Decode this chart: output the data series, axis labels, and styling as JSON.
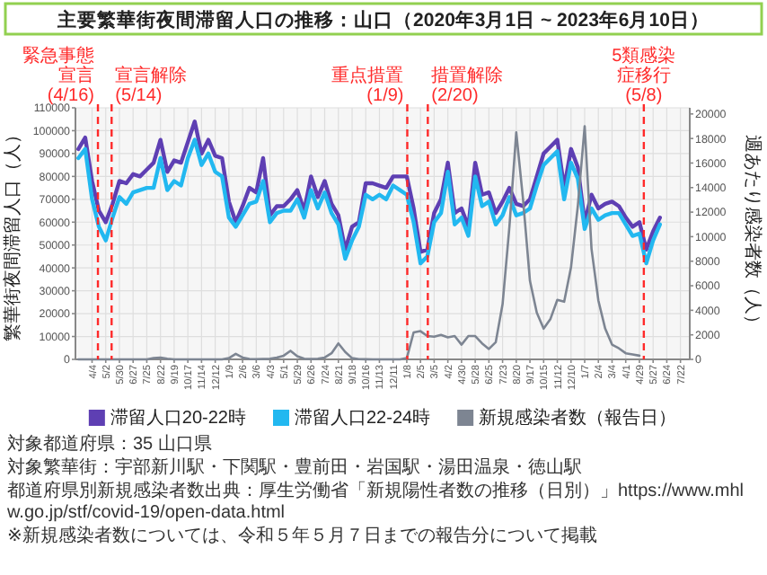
{
  "chart_data": {
    "type": "line",
    "title": "主要繁華街夜間滞留人口の推移：山口（2020年3月1日 ~ 2023年6月10日）",
    "ylabel": "繁華街夜間滞留人口（人）",
    "y2label": "週あたり感染者数（人）",
    "x": [
      "2020-03-07",
      "2020-03-21",
      "2020-04-04",
      "2020-04-18",
      "2020-05-02",
      "2020-05-16",
      "2020-05-30",
      "2020-06-13",
      "2020-06-27",
      "2020-07-11",
      "2020-07-25",
      "2020-08-08",
      "2020-08-22",
      "2020-09-05",
      "2020-09-19",
      "2020-10-03",
      "2020-10-17",
      "2020-10-31",
      "2020-11-14",
      "2020-11-28",
      "2020-12-12",
      "2020-12-26",
      "2021-01-09",
      "2021-01-23",
      "2021-02-06",
      "2021-02-20",
      "2021-03-06",
      "2021-03-20",
      "2021-04-03",
      "2021-04-17",
      "2021-05-01",
      "2021-05-15",
      "2021-05-29",
      "2021-06-12",
      "2021-06-26",
      "2021-07-10",
      "2021-07-24",
      "2021-08-07",
      "2021-08-21",
      "2021-09-04",
      "2021-09-18",
      "2021-10-02",
      "2021-10-16",
      "2021-10-30",
      "2021-11-13",
      "2021-11-27",
      "2021-12-11",
      "2021-12-25",
      "2022-01-08",
      "2022-01-22",
      "2022-02-05",
      "2022-02-19",
      "2022-03-05",
      "2022-03-19",
      "2022-04-02",
      "2022-04-16",
      "2022-04-30",
      "2022-05-14",
      "2022-05-28",
      "2022-06-11",
      "2022-06-25",
      "2022-07-09",
      "2022-07-23",
      "2022-08-06",
      "2022-08-20",
      "2022-09-03",
      "2022-09-17",
      "2022-10-01",
      "2022-10-15",
      "2022-10-29",
      "2022-11-12",
      "2022-11-26",
      "2022-12-10",
      "2022-12-24",
      "2023-01-07",
      "2023-01-21",
      "2023-02-04",
      "2023-02-18",
      "2023-03-04",
      "2023-03-18",
      "2023-04-01",
      "2023-04-15",
      "2023-04-29",
      "2023-05-13",
      "2023-05-27",
      "2023-06-10"
    ],
    "series": [
      {
        "name": "滞留人口20-22時",
        "color": "#5e3fb3",
        "values": [
          92000,
          97000,
          78000,
          65000,
          60000,
          68000,
          78000,
          77000,
          81000,
          80000,
          83000,
          86000,
          96000,
          82000,
          87000,
          86000,
          95000,
          104000,
          90000,
          96000,
          89000,
          88000,
          69000,
          60000,
          67000,
          75000,
          73000,
          88000,
          63000,
          67000,
          67000,
          70000,
          74000,
          65000,
          80000,
          71000,
          78000,
          68000,
          63000,
          48000,
          58000,
          60000,
          77000,
          77000,
          76000,
          75000,
          80000,
          80000,
          80000,
          66000,
          47000,
          48000,
          64000,
          70000,
          86000,
          64000,
          66000,
          58000,
          86000,
          72000,
          73000,
          64000,
          69000,
          75000,
          68000,
          67000,
          70000,
          80000,
          90000,
          93000,
          96000,
          75000,
          92000,
          84000,
          60000,
          72000,
          66000,
          68000,
          69000,
          67000,
          62000,
          58000,
          60000,
          48000,
          56000,
          62000
        ]
      },
      {
        "name": "滞留人口22-24時",
        "color": "#22b8f0",
        "values": [
          88000,
          92000,
          70000,
          58000,
          52000,
          62000,
          71000,
          68000,
          73000,
          74000,
          75000,
          75000,
          88000,
          74000,
          78000,
          76000,
          88000,
          96000,
          85000,
          90000,
          82000,
          80000,
          62000,
          58000,
          63000,
          68000,
          69000,
          78000,
          60000,
          64000,
          65000,
          65000,
          70000,
          62000,
          74000,
          66000,
          73000,
          64000,
          59000,
          44000,
          52000,
          58000,
          72000,
          70000,
          72000,
          70000,
          76000,
          74000,
          72000,
          60000,
          42000,
          45000,
          60000,
          64000,
          82000,
          59000,
          62000,
          54000,
          80000,
          67000,
          69000,
          59000,
          63000,
          71000,
          63000,
          64000,
          66000,
          76000,
          85000,
          88000,
          91000,
          70000,
          86000,
          79000,
          57000,
          66000,
          61000,
          63000,
          64000,
          64000,
          59000,
          54000,
          55000,
          42000,
          52000,
          59000
        ]
      },
      {
        "name": "新規感染者数（報告日）",
        "color": "#7d8592",
        "axis": "y2",
        "values": [
          0,
          0,
          0,
          0,
          0,
          0,
          0,
          0,
          0,
          0,
          0,
          100,
          150,
          50,
          0,
          0,
          0,
          0,
          0,
          0,
          0,
          0,
          100,
          450,
          150,
          30,
          20,
          30,
          50,
          150,
          300,
          700,
          250,
          50,
          30,
          50,
          150,
          500,
          1300,
          600,
          100,
          20,
          10,
          0,
          0,
          0,
          0,
          0,
          100,
          2200,
          2300,
          1900,
          1850,
          2000,
          1800,
          1900,
          1200,
          1900,
          1900,
          1300,
          850,
          1400,
          4500,
          10800,
          18500,
          13000,
          6400,
          3800,
          2500,
          3300,
          4850,
          4700,
          7500,
          12500,
          19000,
          9000,
          4800,
          2500,
          1200,
          900,
          500,
          400,
          300,
          null,
          null,
          null
        ]
      }
    ],
    "xlim": [
      "2020-03-01",
      "2023-08-10"
    ],
    "xticks": [
      {
        "value": "2020-04-04",
        "label": "4/4"
      },
      {
        "value": "2020-05-02",
        "label": "5/2"
      },
      {
        "value": "2020-05-30",
        "label": "5/30"
      },
      {
        "value": "2020-06-27",
        "label": "6/27"
      },
      {
        "value": "2020-07-25",
        "label": "7/25"
      },
      {
        "value": "2020-08-22",
        "label": "8/22"
      },
      {
        "value": "2020-09-19",
        "label": "9/19"
      },
      {
        "value": "2020-10-17",
        "label": "10/17"
      },
      {
        "value": "2020-11-14",
        "label": "11/14"
      },
      {
        "value": "2020-12-12",
        "label": "12/12"
      },
      {
        "value": "2021-01-09",
        "label": "1/9"
      },
      {
        "value": "2021-02-06",
        "label": "2/6"
      },
      {
        "value": "2021-03-06",
        "label": "3/6"
      },
      {
        "value": "2021-04-03",
        "label": "4/3"
      },
      {
        "value": "2021-05-01",
        "label": "5/1"
      },
      {
        "value": "2021-05-29",
        "label": "5/29"
      },
      {
        "value": "2021-06-26",
        "label": "6/26"
      },
      {
        "value": "2021-07-24",
        "label": "7/24"
      },
      {
        "value": "2021-08-21",
        "label": "8/21"
      },
      {
        "value": "2021-09-18",
        "label": "9/18"
      },
      {
        "value": "2021-10-16",
        "label": "10/16"
      },
      {
        "value": "2021-11-13",
        "label": "11/13"
      },
      {
        "value": "2021-12-11",
        "label": "12/11"
      },
      {
        "value": "2022-01-08",
        "label": "1/8"
      },
      {
        "value": "2022-02-05",
        "label": "2/5"
      },
      {
        "value": "2022-03-05",
        "label": "3/5"
      },
      {
        "value": "2022-04-02",
        "label": "4/2"
      },
      {
        "value": "2022-04-30",
        "label": "4/30"
      },
      {
        "value": "2022-05-28",
        "label": "5/28"
      },
      {
        "value": "2022-06-25",
        "label": "6/25"
      },
      {
        "value": "2022-07-23",
        "label": "7/23"
      },
      {
        "value": "2022-08-20",
        "label": "8/20"
      },
      {
        "value": "2022-09-17",
        "label": "9/17"
      },
      {
        "value": "2022-10-15",
        "label": "10/15"
      },
      {
        "value": "2022-11-12",
        "label": "11/12"
      },
      {
        "value": "2022-12-10",
        "label": "12/10"
      },
      {
        "value": "2023-01-07",
        "label": "1/7"
      },
      {
        "value": "2023-02-04",
        "label": "2/4"
      },
      {
        "value": "2023-03-04",
        "label": "3/4"
      },
      {
        "value": "2023-04-01",
        "label": "4/1"
      },
      {
        "value": "2023-04-29",
        "label": "4/29"
      },
      {
        "value": "2023-05-27",
        "label": "5/27"
      },
      {
        "value": "2023-06-24",
        "label": "6/24"
      },
      {
        "value": "2023-07-22",
        "label": "7/22"
      }
    ],
    "ylim": [
      0,
      110000
    ],
    "yticks": [
      0,
      10000,
      20000,
      30000,
      40000,
      50000,
      60000,
      70000,
      80000,
      90000,
      100000,
      110000
    ],
    "y2lim": [
      0,
      20500
    ],
    "y2ticks": [
      0,
      2000,
      4000,
      6000,
      8000,
      10000,
      12000,
      14000,
      16000,
      18000,
      20000
    ],
    "ref_lines": [
      {
        "axis": "x",
        "value": "2020-04-16",
        "label": "緊急事態宣言(4/16)",
        "color": "#ff2a2a",
        "line_style": "dashed"
      },
      {
        "axis": "x",
        "value": "2020-05-14",
        "label": "宣言解除(5/14)",
        "color": "#ff2a2a",
        "line_style": "dashed"
      },
      {
        "axis": "x",
        "value": "2022-01-09",
        "label": "重点措置(1/9)",
        "color": "#ff2a2a",
        "line_style": "dashed"
      },
      {
        "axis": "x",
        "value": "2022-02-20",
        "label": "措置解除(2/20)",
        "color": "#ff2a2a",
        "line_style": "dashed"
      },
      {
        "axis": "x",
        "value": "2023-05-08",
        "label": "5類感染症移行(5/8)",
        "color": "#ff2a2a",
        "line_style": "dashed"
      }
    ],
    "grid": true,
    "legend": "bottom",
    "annotations": [
      "対象都道府県：35 山口県",
      "対象繁華街：宇部新川駅・下関駅・豊前田・岩国駅・湯田温泉・徳山駅",
      "都道府県別新規感染者数出典：厚生労働省「新規陽性者数の推移（日別）」https://www.mhlw.go.jp/stf/covid-19/open-data.html",
      "※新規感染者数については、令和５年５月７日までの報告分について掲載"
    ]
  }
}
